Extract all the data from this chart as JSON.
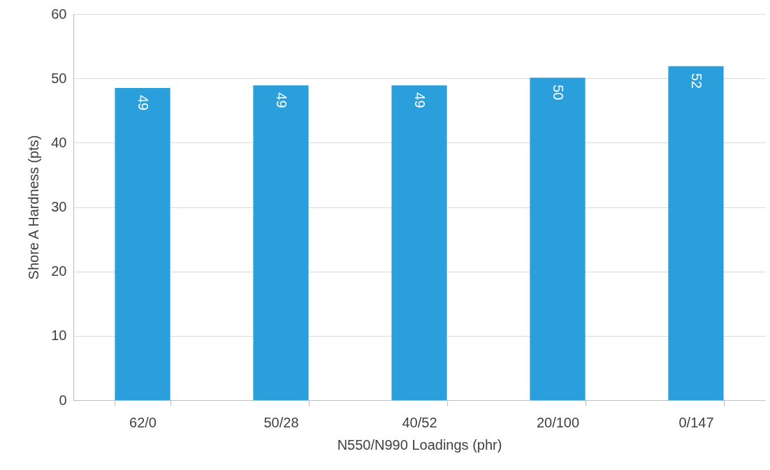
{
  "chart_data": {
    "type": "bar",
    "xlabel": "N550/N990 Loadings (phr)",
    "ylabel": "Shore A Hardness (pts)",
    "categories": [
      "62/0",
      "50/28",
      "40/52",
      "20/100",
      "0/147"
    ],
    "values": [
      48.5,
      48.9,
      48.9,
      50.1,
      51.9
    ],
    "value_labels": [
      "49",
      "49",
      "49",
      "50",
      "52"
    ],
    "color": "#2b9fdc",
    "ylim": [
      0,
      60
    ],
    "yticks": [
      0,
      10,
      20,
      30,
      40,
      50,
      60
    ],
    "grid": "y"
  }
}
